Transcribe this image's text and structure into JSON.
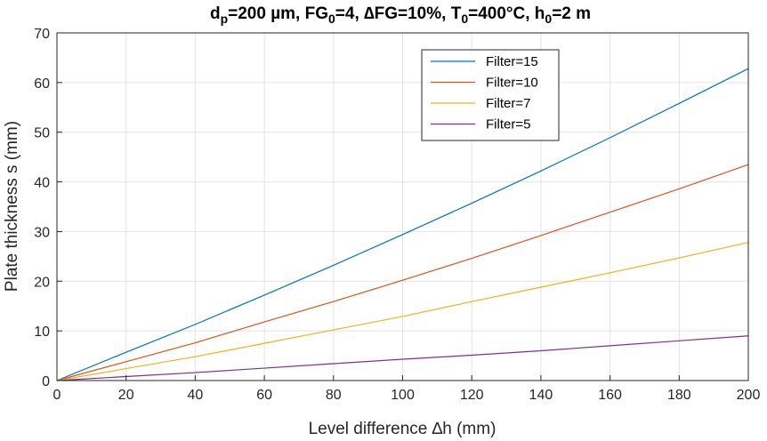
{
  "chart_data": {
    "type": "line",
    "title": "d_p=200 µm, FG_0=4, ΔFG=10%, T_0=400°C, h_0=2 m",
    "title_parts": [
      {
        "text": "d",
        "sub": false
      },
      {
        "text": "p",
        "sub": true
      },
      {
        "text": "=200 µm, FG",
        "sub": false
      },
      {
        "text": "0",
        "sub": true
      },
      {
        "text": "=4, ∆FG=10%, T",
        "sub": false
      },
      {
        "text": "0",
        "sub": true
      },
      {
        "text": "=400°C, h",
        "sub": false
      },
      {
        "text": "0",
        "sub": true
      },
      {
        "text": "=2 m",
        "sub": false
      }
    ],
    "xlabel": "Level difference ∆h (mm)",
    "ylabel": "Plate thickness s (mm)",
    "xlim": [
      0,
      200
    ],
    "ylim": [
      0,
      70
    ],
    "xticks": [
      0,
      20,
      40,
      60,
      80,
      100,
      120,
      140,
      160,
      180,
      200
    ],
    "yticks": [
      0,
      10,
      20,
      30,
      40,
      50,
      60,
      70
    ],
    "grid": true,
    "legend_position": "top-right",
    "x": [
      0,
      20,
      40,
      60,
      80,
      100,
      120,
      140,
      160,
      180,
      200
    ],
    "series": [
      {
        "name": "Filter=15",
        "color": "#0072BD",
        "values": [
          0,
          5.7,
          11.3,
          17.2,
          23.2,
          29.4,
          35.7,
          42.2,
          48.9,
          55.8,
          62.8
        ]
      },
      {
        "name": "Filter=10",
        "color": "#D95319",
        "values": [
          0,
          3.8,
          7.6,
          11.8,
          15.9,
          20.2,
          24.6,
          29.2,
          33.9,
          38.6,
          43.5
        ]
      },
      {
        "name": "Filter=7",
        "color": "#EDB120",
        "values": [
          0,
          2.4,
          4.8,
          7.5,
          10.2,
          12.9,
          15.9,
          18.8,
          21.7,
          24.7,
          27.8
        ]
      },
      {
        "name": "Filter=5",
        "color": "#7E2F8E",
        "values": [
          0,
          0.8,
          1.6,
          2.5,
          3.4,
          4.3,
          5.1,
          6.0,
          7.0,
          8.0,
          9.0
        ]
      }
    ]
  }
}
